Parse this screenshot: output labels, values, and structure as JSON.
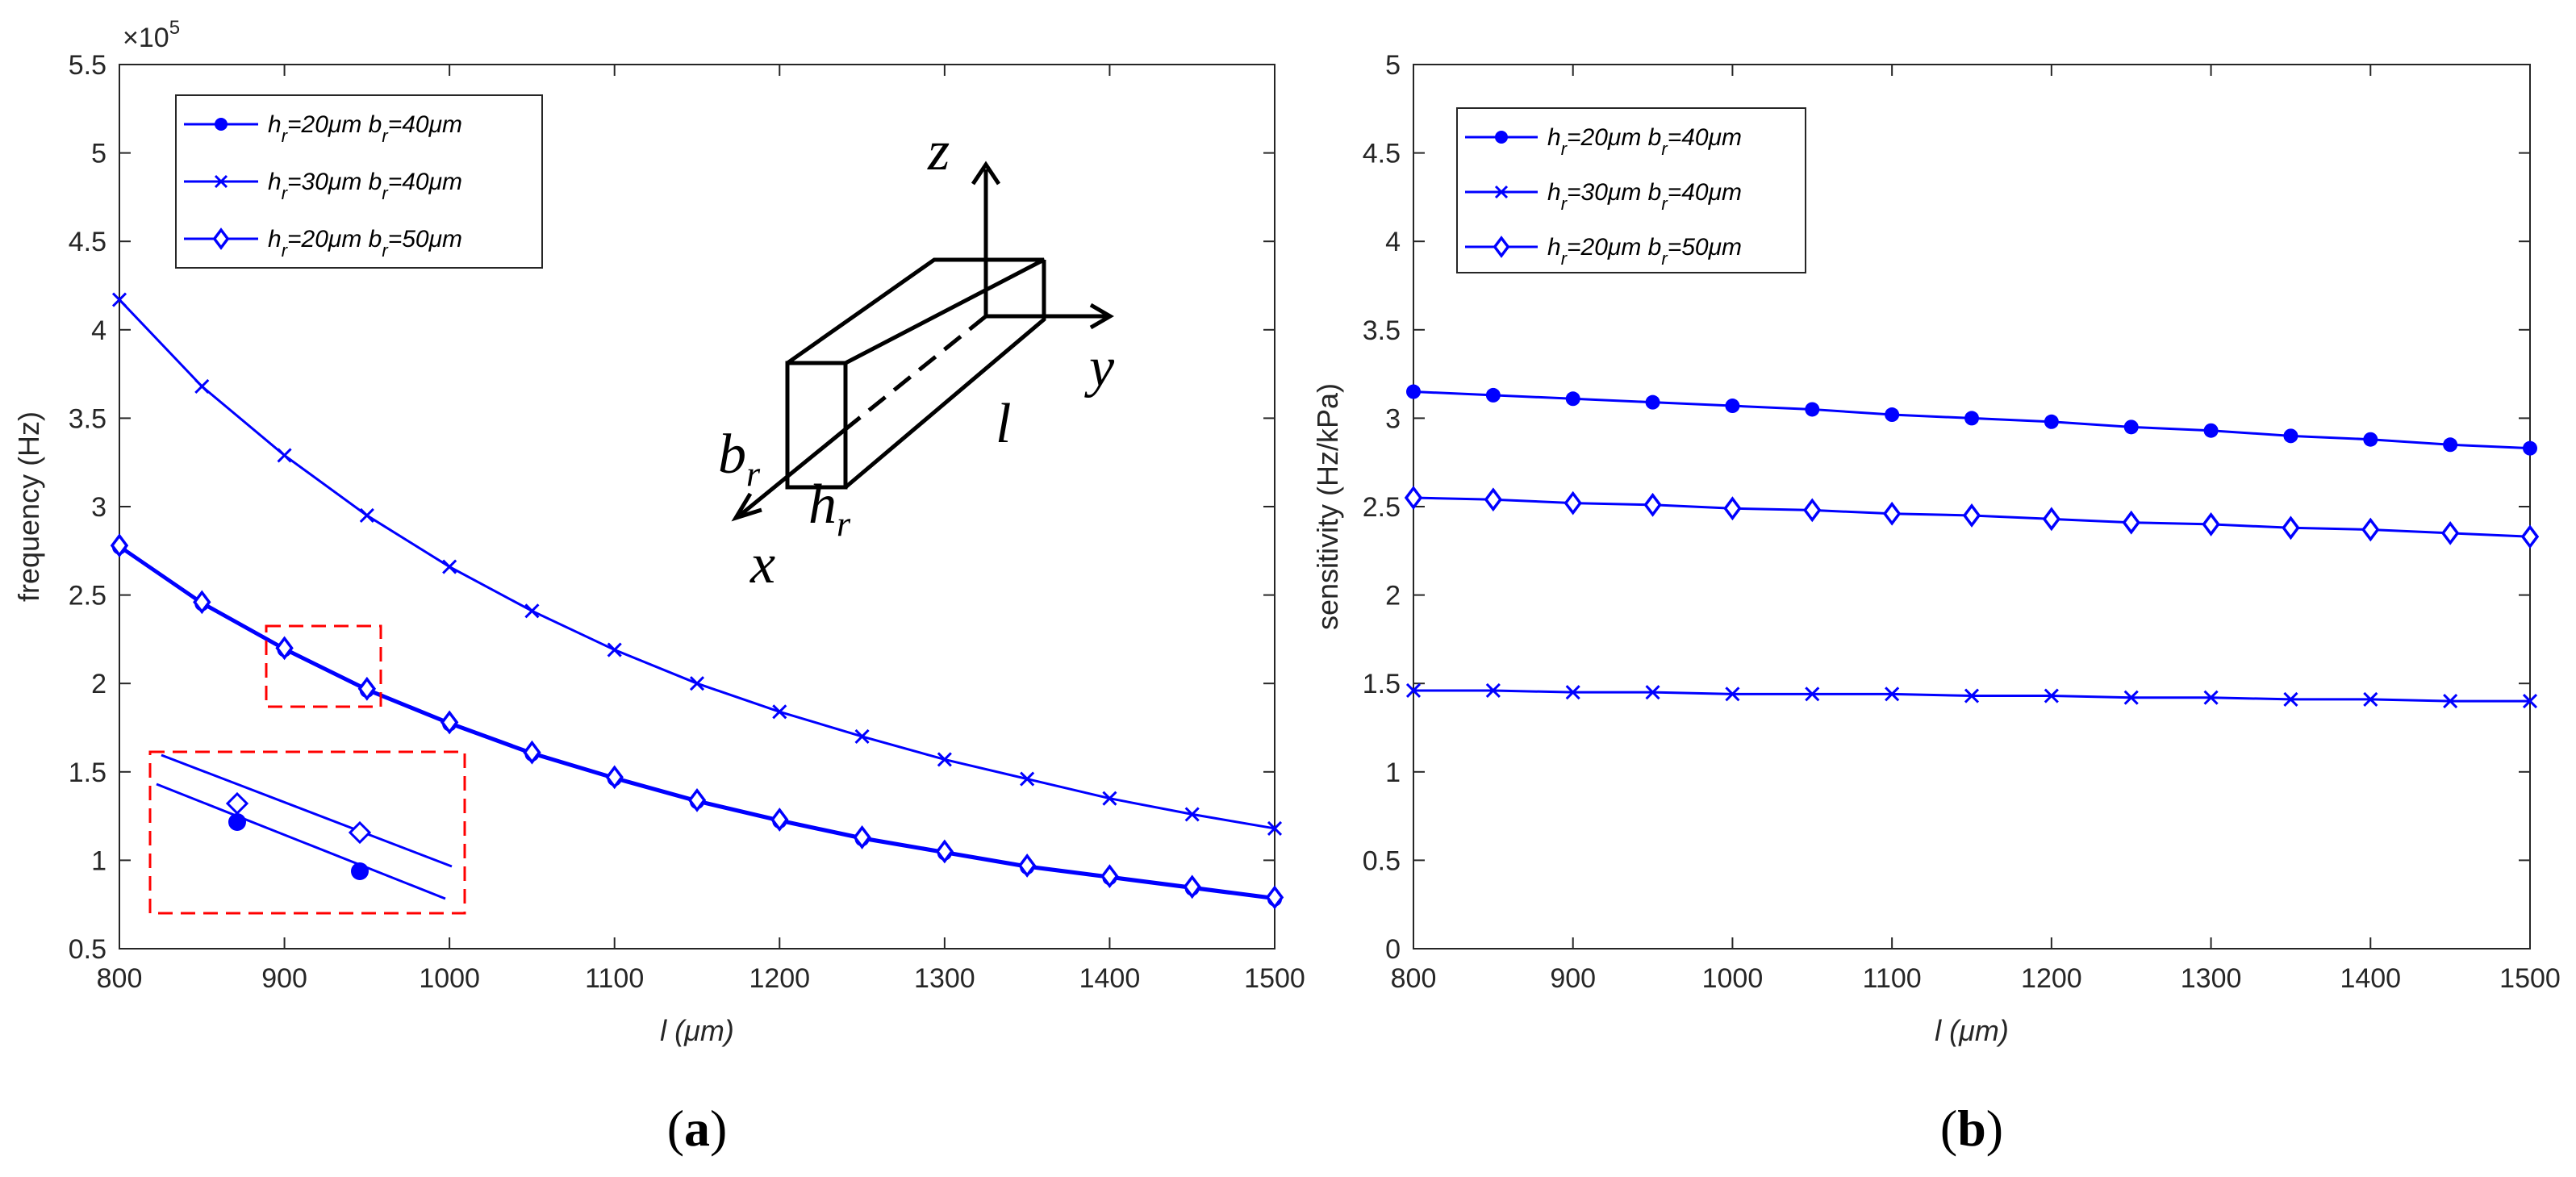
{
  "chart_data": [
    {
      "id": "a",
      "type": "line",
      "panel_label_open": "(",
      "panel_label_letter": "a",
      "panel_label_close": ")",
      "xlabel": "l (μm)",
      "ylabel": "frequency (Hz)",
      "y_multiplier_base": "×10",
      "y_multiplier_exp": "5",
      "xlim": [
        800,
        1500
      ],
      "ylim": [
        0.5,
        5.5
      ],
      "x_ticks": [
        "800",
        "900",
        "1000",
        "1100",
        "1200",
        "1300",
        "1400",
        "1500"
      ],
      "y_ticks": [
        "0.5",
        "1",
        "1.5",
        "2",
        "2.5",
        "3",
        "3.5",
        "4",
        "4.5",
        "5",
        "5.5"
      ],
      "x": [
        800,
        850,
        900,
        950,
        1000,
        1050,
        1100,
        1150,
        1200,
        1250,
        1300,
        1350,
        1400,
        1450,
        1500
      ],
      "series": [
        {
          "name": "hr=20μm br=40μm",
          "label_h": "h",
          "label_hsub": "r",
          "label_mid": "=20μm b",
          "label_bsub": "r",
          "label_end": "=40μm",
          "marker": "dot",
          "values": [
            2.77,
            2.45,
            2.19,
            1.96,
            1.77,
            1.6,
            1.46,
            1.33,
            1.22,
            1.12,
            1.04,
            0.96,
            0.9,
            0.84,
            0.78
          ]
        },
        {
          "name": "hr=30μm br=40μm",
          "label_h": "h",
          "label_hsub": "r",
          "label_mid": "=30μm b",
          "label_bsub": "r",
          "label_end": "=40μm",
          "marker": "x",
          "values": [
            4.17,
            3.68,
            3.29,
            2.95,
            2.66,
            2.41,
            2.19,
            2.0,
            1.84,
            1.7,
            1.57,
            1.46,
            1.35,
            1.26,
            1.18
          ]
        },
        {
          "name": "hr=20μm br=50μm",
          "label_h": "h",
          "label_hsub": "r",
          "label_mid": "=20μm b",
          "label_bsub": "r",
          "label_end": "=50μm",
          "marker": "diamond",
          "values": [
            2.78,
            2.46,
            2.2,
            1.97,
            1.78,
            1.61,
            1.47,
            1.34,
            1.23,
            1.13,
            1.05,
            0.97,
            0.91,
            0.85,
            0.79
          ]
        }
      ],
      "legend": "top-left",
      "schematic_labels": {
        "z": "z",
        "y": "y",
        "x": "x",
        "b": "b",
        "b_sub": "r",
        "h": "h",
        "h_sub": "r",
        "l": "l"
      }
    },
    {
      "id": "b",
      "type": "line",
      "panel_label_open": "(",
      "panel_label_letter": "b",
      "panel_label_close": ")",
      "xlabel": "l (μm)",
      "ylabel": "sensitivity (Hz/kPa)",
      "xlim": [
        800,
        1500
      ],
      "ylim": [
        0,
        5
      ],
      "x_ticks": [
        "800",
        "900",
        "1000",
        "1100",
        "1200",
        "1300",
        "1400",
        "1500"
      ],
      "y_ticks": [
        "0",
        "0.5",
        "1",
        "1.5",
        "2",
        "2.5",
        "3",
        "3.5",
        "4",
        "4.5",
        "5"
      ],
      "x": [
        800,
        850,
        900,
        950,
        1000,
        1050,
        1100,
        1150,
        1200,
        1250,
        1300,
        1350,
        1400,
        1450,
        1500
      ],
      "series": [
        {
          "name": "hr=20μm br=40μm",
          "label_h": "h",
          "label_hsub": "r",
          "label_mid": "=20μm b",
          "label_bsub": "r",
          "label_end": "=40μm",
          "marker": "dot",
          "values": [
            3.15,
            3.13,
            3.11,
            3.09,
            3.07,
            3.05,
            3.02,
            3.0,
            2.98,
            2.95,
            2.93,
            2.9,
            2.88,
            2.85,
            2.83
          ]
        },
        {
          "name": "hr=30μm br=40μm",
          "label_h": "h",
          "label_hsub": "r",
          "label_mid": "=30μm b",
          "label_bsub": "r",
          "label_end": "=40μm",
          "marker": "x",
          "values": [
            1.46,
            1.46,
            1.45,
            1.45,
            1.44,
            1.44,
            1.44,
            1.43,
            1.43,
            1.42,
            1.42,
            1.41,
            1.41,
            1.4,
            1.4
          ]
        },
        {
          "name": "hr=20μm br=50μm",
          "label_h": "h",
          "label_hsub": "r",
          "label_mid": "=20μm b",
          "label_bsub": "r",
          "label_end": "=50μm",
          "marker": "diamond",
          "values": [
            2.55,
            2.54,
            2.52,
            2.51,
            2.49,
            2.48,
            2.46,
            2.45,
            2.43,
            2.41,
            2.4,
            2.38,
            2.37,
            2.35,
            2.33
          ]
        }
      ],
      "legend": "top-left"
    }
  ],
  "colors": {
    "line": "#0000ff",
    "zoom_box": "#ff0000",
    "axis": "#262626"
  }
}
